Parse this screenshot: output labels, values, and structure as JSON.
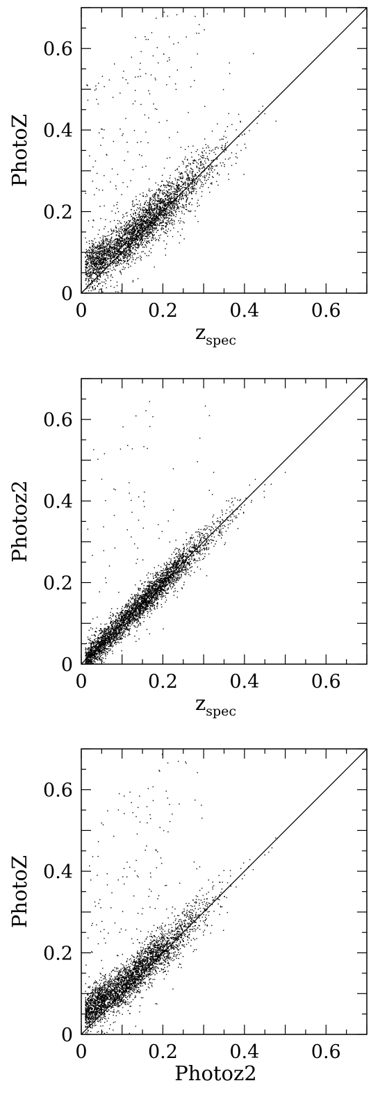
{
  "chart_data": [
    {
      "type": "scatter",
      "title": "",
      "xlabel": "z",
      "xlabel_subscript": "spec",
      "ylabel": "PhotoZ",
      "xlim": [
        0,
        0.7
      ],
      "ylim": [
        0,
        0.7
      ],
      "xticks": [
        "0",
        "0.2",
        "0.4",
        "0.6"
      ],
      "yticks": [
        "0",
        "0.2",
        "0.4",
        "0.6"
      ],
      "grid": false,
      "reference_line": {
        "from": [
          0,
          0
        ],
        "to": [
          0.7,
          0.7
        ]
      },
      "series": [
        {
          "scatter_model": {
            "n_points": 3600,
            "center_x": 0.14,
            "x_sd": 0.09,
            "x_min": 0.01,
            "x_max": 0.5,
            "x_bias": 0.014,
            "y_bias": 0.012,
            "y_sd": 0.025,
            "outlier_frac": 0.06,
            "seed": 11
          },
          "x": [
            0.02,
            0.05,
            0.08,
            0.1,
            0.15,
            0.2,
            0.25,
            0.3,
            0.35,
            0.4,
            0.45,
            0.48
          ],
          "y": [
            0.02,
            0.07,
            0.12,
            0.13,
            0.16,
            0.2,
            0.25,
            0.3,
            0.35,
            0.39,
            0.44,
            0.48
          ]
        }
      ]
    },
    {
      "type": "scatter",
      "title": "",
      "xlabel": "z",
      "xlabel_subscript": "spec",
      "ylabel": "Photoz2",
      "xlim": [
        0,
        0.7
      ],
      "ylim": [
        0,
        0.7
      ],
      "xticks": [
        "0",
        "0.2",
        "0.4",
        "0.6"
      ],
      "yticks": [
        "0",
        "0.2",
        "0.4",
        "0.6"
      ],
      "grid": false,
      "reference_line": {
        "from": [
          0,
          0
        ],
        "to": [
          0.7,
          0.7
        ]
      },
      "series": [
        {
          "scatter_model": {
            "n_points": 3600,
            "center_x": 0.14,
            "x_sd": 0.095,
            "x_min": 0.01,
            "x_max": 0.56,
            "x_bias": 0.0,
            "y_bias": 0.0,
            "y_sd": 0.017,
            "outlier_frac": 0.025,
            "seed": 23
          },
          "x": [
            0.02,
            0.05,
            0.1,
            0.15,
            0.2,
            0.25,
            0.3,
            0.35,
            0.4,
            0.45,
            0.5
          ],
          "y": [
            0.03,
            0.06,
            0.1,
            0.14,
            0.19,
            0.24,
            0.29,
            0.34,
            0.39,
            0.44,
            0.47
          ]
        }
      ]
    },
    {
      "type": "scatter",
      "title": "",
      "xlabel": "Photoz2",
      "xlabel_subscript": "",
      "ylabel": "PhotoZ",
      "xlim": [
        0,
        0.7
      ],
      "ylim": [
        0,
        0.7
      ],
      "xticks": [
        "0",
        "0.2",
        "0.4",
        "0.6"
      ],
      "yticks": [
        "0",
        "0.2",
        "0.4",
        "0.6"
      ],
      "grid": false,
      "reference_line": {
        "from": [
          0,
          0
        ],
        "to": [
          0.7,
          0.7
        ]
      },
      "series": [
        {
          "scatter_model": {
            "n_points": 3600,
            "center_x": 0.12,
            "x_sd": 0.09,
            "x_min": 0.01,
            "x_max": 0.5,
            "x_bias": 0.012,
            "y_bias": 0.01,
            "y_sd": 0.022,
            "outlier_frac": 0.05,
            "seed": 37
          },
          "x": [
            0.02,
            0.05,
            0.08,
            0.1,
            0.15,
            0.2,
            0.25,
            0.3,
            0.35,
            0.4,
            0.45,
            0.48
          ],
          "y": [
            0.02,
            0.06,
            0.11,
            0.12,
            0.16,
            0.2,
            0.25,
            0.3,
            0.35,
            0.39,
            0.44,
            0.48
          ]
        }
      ]
    }
  ]
}
